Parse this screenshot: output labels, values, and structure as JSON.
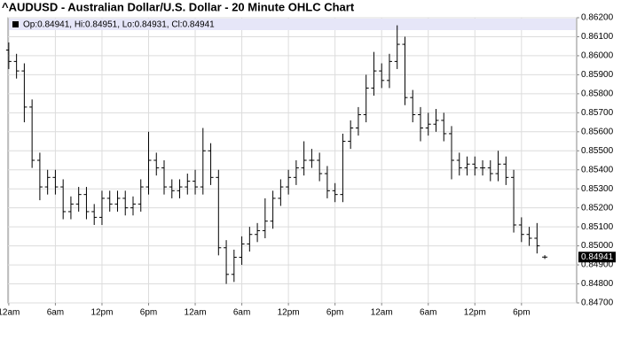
{
  "chart_data": {
    "type": "ohlc",
    "title": "^AUDUSD - Australian Dollar/U.S. Dollar - 20 Minute OHLC Chart",
    "legend_text": "Op:0.84941, Hi:0.84951, Lo:0.84931, Cl:0.84941",
    "last_label": "0.84941",
    "color": "#000000",
    "grid": true,
    "x": [
      0,
      1,
      2,
      3,
      4,
      5,
      6,
      7,
      8,
      9,
      10,
      11,
      12,
      13,
      14,
      15,
      16,
      17,
      18,
      19,
      20,
      21,
      22,
      23,
      24,
      25,
      26,
      27,
      28,
      29,
      30,
      31,
      32,
      33,
      34,
      35,
      36,
      37,
      38,
      39,
      40,
      41,
      42,
      43,
      44,
      45,
      46,
      47,
      48,
      49,
      50,
      51,
      52,
      53,
      54,
      55,
      56,
      57,
      58,
      59,
      60,
      61,
      62,
      63,
      64,
      65,
      66,
      67,
      68,
      69
    ],
    "open": [
      0.8603,
      0.8597,
      0.8592,
      0.8573,
      0.8545,
      0.8531,
      0.8536,
      0.8531,
      0.8518,
      0.8522,
      0.8527,
      0.8518,
      0.8515,
      0.8525,
      0.8522,
      0.8525,
      0.852,
      0.8522,
      0.8531,
      0.8545,
      0.8541,
      0.8531,
      0.8529,
      0.8531,
      0.8534,
      0.8531,
      0.855,
      0.8536,
      0.8499,
      0.8485,
      0.8494,
      0.8501,
      0.8506,
      0.8508,
      0.8513,
      0.8525,
      0.8531,
      0.8536,
      0.8541,
      0.8545,
      0.8545,
      0.8538,
      0.8529,
      0.8527,
      0.8555,
      0.8562,
      0.8569,
      0.8583,
      0.8592,
      0.8587,
      0.8597,
      0.8606,
      0.8578,
      0.8569,
      0.8562,
      0.8564,
      0.8566,
      0.8559,
      0.8545,
      0.8541,
      0.8543,
      0.8541,
      0.8541,
      0.8538,
      0.8543,
      0.8536,
      0.8511,
      0.8506,
      0.8504,
      0.84941
    ],
    "high": [
      0.8607,
      0.8601,
      0.8596,
      0.8577,
      0.8549,
      0.854,
      0.854,
      0.8535,
      0.8526,
      0.8531,
      0.8531,
      0.8522,
      0.8529,
      0.8529,
      0.8529,
      0.8529,
      0.8526,
      0.8535,
      0.856,
      0.8549,
      0.8545,
      0.8535,
      0.8535,
      0.8538,
      0.854,
      0.8562,
      0.8554,
      0.854,
      0.8503,
      0.8498,
      0.8505,
      0.851,
      0.8512,
      0.8525,
      0.8529,
      0.8535,
      0.854,
      0.8545,
      0.8555,
      0.8551,
      0.8549,
      0.8542,
      0.8533,
      0.8559,
      0.8566,
      0.8573,
      0.859,
      0.8602,
      0.8596,
      0.8601,
      0.8616,
      0.861,
      0.8582,
      0.8573,
      0.857,
      0.8572,
      0.857,
      0.8563,
      0.8549,
      0.8547,
      0.8547,
      0.8545,
      0.8545,
      0.855,
      0.8547,
      0.854,
      0.8515,
      0.851,
      0.8512,
      0.84951
    ],
    "low": [
      0.8593,
      0.8588,
      0.8565,
      0.8541,
      0.8524,
      0.8527,
      0.8527,
      0.8514,
      0.8514,
      0.8518,
      0.8514,
      0.8511,
      0.8511,
      0.8518,
      0.8518,
      0.8516,
      0.8516,
      0.8518,
      0.8527,
      0.8537,
      0.8527,
      0.8525,
      0.8525,
      0.8527,
      0.8527,
      0.8527,
      0.8532,
      0.8495,
      0.848,
      0.8481,
      0.849,
      0.8497,
      0.8502,
      0.8504,
      0.8509,
      0.8521,
      0.8527,
      0.8532,
      0.8537,
      0.8541,
      0.8534,
      0.8525,
      0.8523,
      0.8523,
      0.8551,
      0.8558,
      0.8565,
      0.8579,
      0.8583,
      0.8583,
      0.8593,
      0.8574,
      0.8565,
      0.8555,
      0.8558,
      0.856,
      0.8555,
      0.8535,
      0.8537,
      0.8537,
      0.8537,
      0.8537,
      0.8534,
      0.8534,
      0.8532,
      0.8507,
      0.8502,
      0.85,
      0.8496,
      0.84931
    ],
    "close": [
      0.8597,
      0.8592,
      0.8573,
      0.8545,
      0.8531,
      0.8536,
      0.8531,
      0.8518,
      0.8522,
      0.8527,
      0.8518,
      0.8515,
      0.8525,
      0.8522,
      0.8525,
      0.852,
      0.8522,
      0.8531,
      0.8545,
      0.8541,
      0.8531,
      0.8529,
      0.8531,
      0.8534,
      0.8531,
      0.855,
      0.8536,
      0.8499,
      0.8485,
      0.8494,
      0.8501,
      0.8506,
      0.8508,
      0.8513,
      0.8525,
      0.8531,
      0.8536,
      0.8541,
      0.8545,
      0.8545,
      0.8538,
      0.8529,
      0.8527,
      0.8555,
      0.8562,
      0.8569,
      0.8583,
      0.8592,
      0.8587,
      0.8597,
      0.8606,
      0.8578,
      0.8569,
      0.8562,
      0.8564,
      0.8566,
      0.8559,
      0.8545,
      0.8541,
      0.8543,
      0.8541,
      0.8541,
      0.8538,
      0.8543,
      0.8536,
      0.8511,
      0.8506,
      0.8504,
      0.85,
      0.84941
    ],
    "xlim": [
      -0.1,
      73.1
    ],
    "xticks": [
      {
        "value": 0,
        "label": "12am"
      },
      {
        "value": 6,
        "label": "6am"
      },
      {
        "value": 12,
        "label": "12pm"
      },
      {
        "value": 18,
        "label": "6pm"
      },
      {
        "value": 24,
        "label": "12am"
      },
      {
        "value": 30,
        "label": "6am"
      },
      {
        "value": 36,
        "label": "12pm"
      },
      {
        "value": 42,
        "label": "6pm"
      },
      {
        "value": 48,
        "label": "12am"
      },
      {
        "value": 54,
        "label": "6am"
      },
      {
        "value": 60,
        "label": "12pm"
      },
      {
        "value": 66,
        "label": "6pm"
      }
    ],
    "ylim": [
      0.847,
      0.862
    ],
    "yticks": [
      {
        "value": 0.847,
        "label": "0.84700"
      },
      {
        "value": 0.848,
        "label": "0.84800"
      },
      {
        "value": 0.849,
        "label": "0.84900"
      },
      {
        "value": 0.85,
        "label": "0.85000"
      },
      {
        "value": 0.851,
        "label": "0.85100"
      },
      {
        "value": 0.852,
        "label": "0.85200"
      },
      {
        "value": 0.853,
        "label": "0.85300"
      },
      {
        "value": 0.854,
        "label": "0.85400"
      },
      {
        "value": 0.855,
        "label": "0.85500"
      },
      {
        "value": 0.856,
        "label": "0.85600"
      },
      {
        "value": 0.857,
        "label": "0.85700"
      },
      {
        "value": 0.858,
        "label": "0.85800"
      },
      {
        "value": 0.859,
        "label": "0.85900"
      },
      {
        "value": 0.86,
        "label": "0.86000"
      },
      {
        "value": 0.861,
        "label": "0.86100"
      },
      {
        "value": 0.862,
        "label": "0.86200"
      }
    ]
  }
}
